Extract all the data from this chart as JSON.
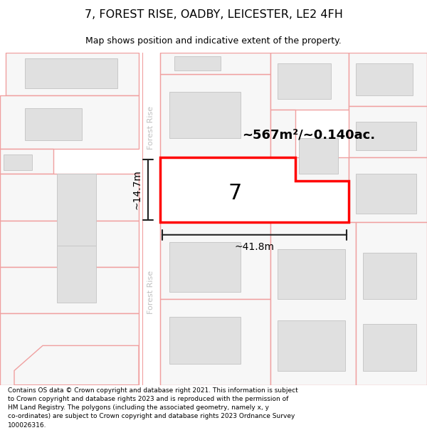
{
  "title": "7, FOREST RISE, OADBY, LEICESTER, LE2 4FH",
  "subtitle": "Map shows position and indicative extent of the property.",
  "footer": "Contains OS data © Crown copyright and database right 2021. This information is subject\nto Crown copyright and database rights 2023 and is reproduced with the permission of\nHM Land Registry. The polygons (including the associated geometry, namely x, y\nco-ordinates) are subject to Crown copyright and database rights 2023 Ordnance Survey\n100026316.",
  "area_label": "~567m²/~0.140ac.",
  "width_label": "~41.8m",
  "height_label": "~14.7m",
  "property_number": "7",
  "bg_color": "#f7f7f7",
  "plot_outline_color": "#ff0000",
  "road_outline_color": "#f0a0a0",
  "building_fill": "#e0e0e0",
  "building_outline": "#c8c8c8",
  "measurement_color": "#222222",
  "title_fontsize": 11,
  "subtitle_fontsize": 9,
  "footer_fontsize": 6.5,
  "road_label_color": "#c0c0c0",
  "road_label_fontsize": 8
}
